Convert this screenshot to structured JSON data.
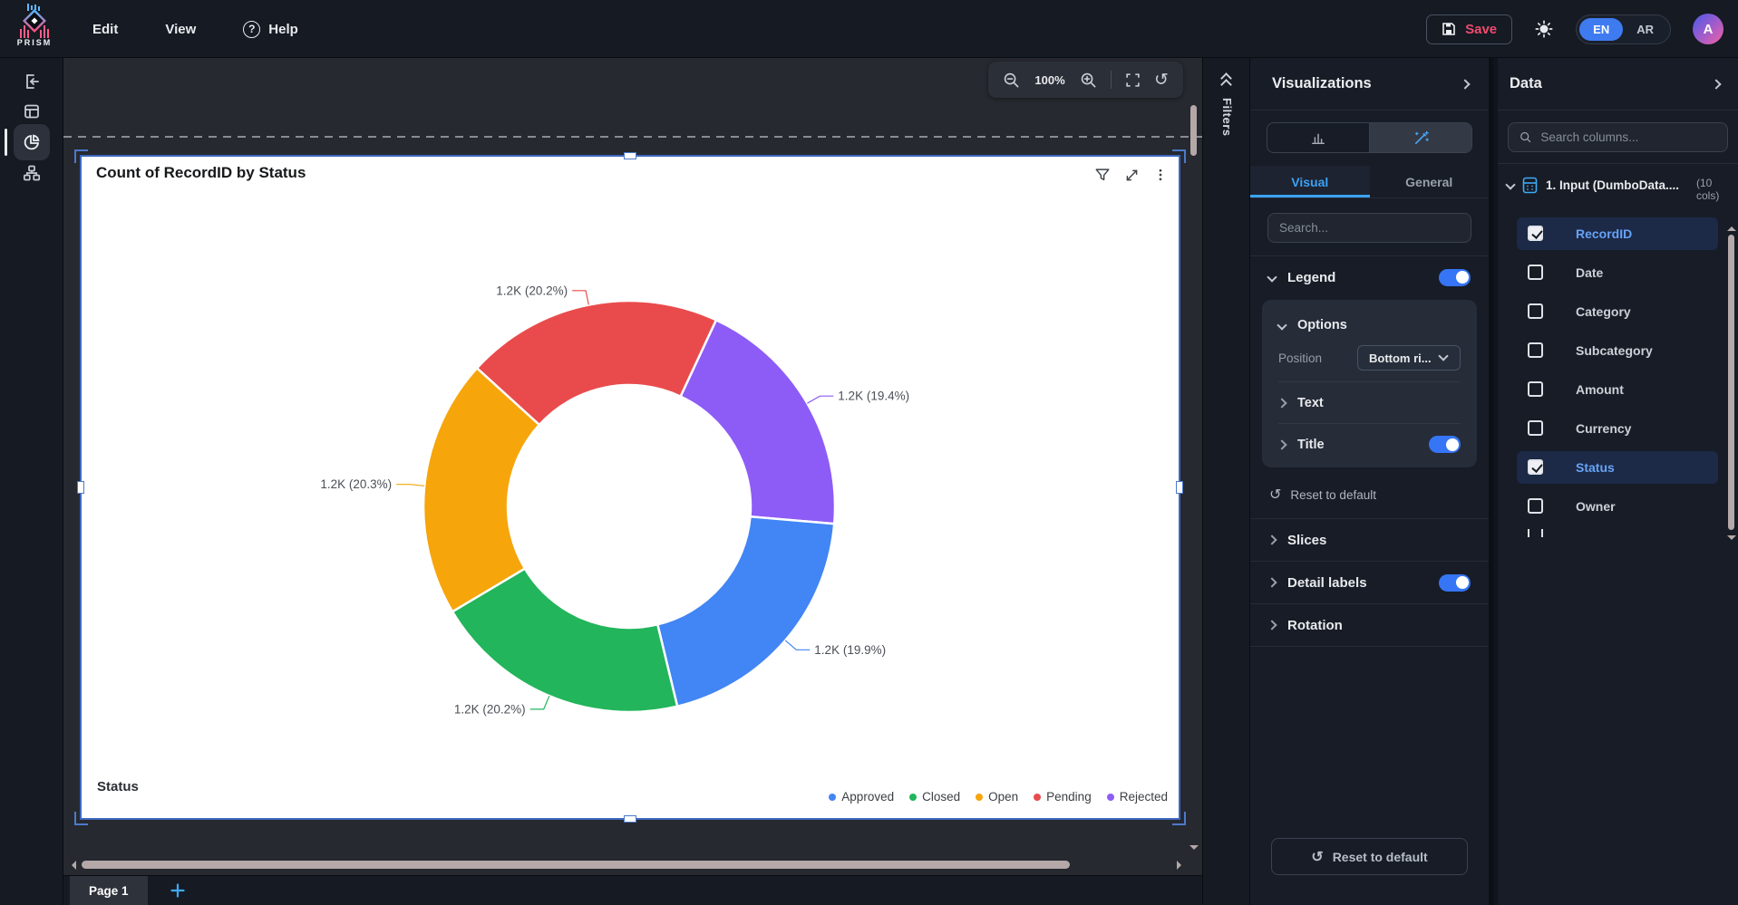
{
  "app": {
    "brand": "PRISM",
    "menu": {
      "edit": "Edit",
      "view": "View",
      "help": "Help"
    },
    "save_label": "Save",
    "lang": {
      "en": "EN",
      "ar": "AR"
    },
    "avatar_initial": "A"
  },
  "canvas": {
    "zoom_level": "100%",
    "page_tab": "Page 1"
  },
  "filters_panel": {
    "title": "Filters"
  },
  "widget": {
    "title": "Count of RecordID by Status",
    "category_label": "Status"
  },
  "chart_data": {
    "type": "pie",
    "donut": true,
    "title": "Count of RecordID by Status",
    "category_field": "Status",
    "value_field": "Count of RecordID",
    "legend_position": "Bottom right",
    "start_angle_deg": 25,
    "slices": [
      {
        "category": "Rejected",
        "display": "1.2K",
        "pct": 19.4,
        "color": "#8d5cf6"
      },
      {
        "category": "Approved",
        "display": "1.2K",
        "pct": 19.9,
        "color": "#4285f4"
      },
      {
        "category": "Closed",
        "display": "1.2K",
        "pct": 20.2,
        "color": "#22b55b"
      },
      {
        "category": "Open",
        "display": "1.2K",
        "pct": 20.3,
        "color": "#f6a50b"
      },
      {
        "category": "Pending",
        "display": "1.2K",
        "pct": 20.2,
        "color": "#e94b4c"
      }
    ],
    "legend": [
      {
        "label": "Approved",
        "color": "#4285f4"
      },
      {
        "label": "Closed",
        "color": "#22b55b"
      },
      {
        "label": "Open",
        "color": "#f6a50b"
      },
      {
        "label": "Pending",
        "color": "#e94b4c"
      },
      {
        "label": "Rejected",
        "color": "#8d5cf6"
      }
    ]
  },
  "visualizations_panel": {
    "title": "Visualizations",
    "tabs": {
      "visual": "Visual",
      "general": "General"
    },
    "search_placeholder": "Search...",
    "legend_label": "Legend",
    "options_label": "Options",
    "position_label": "Position",
    "position_value": "Bottom ri...",
    "text_label": "Text",
    "title_section_label": "Title",
    "reset_link": "Reset to default",
    "slices_label": "Slices",
    "detail_labels_label": "Detail labels",
    "rotation_label": "Rotation",
    "reset_button": "Reset to default"
  },
  "data_panel": {
    "title": "Data",
    "search_placeholder": "Search columns...",
    "table_name": "1. Input (DumboData....",
    "cols_badge": "(10 cols)",
    "columns": [
      {
        "name": "RecordID",
        "checked": true
      },
      {
        "name": "Date",
        "checked": false
      },
      {
        "name": "Category",
        "checked": false
      },
      {
        "name": "Subcategory",
        "checked": false
      },
      {
        "name": "Amount",
        "checked": false
      },
      {
        "name": "Currency",
        "checked": false
      },
      {
        "name": "Status",
        "checked": true
      },
      {
        "name": "Owner",
        "checked": false
      }
    ]
  }
}
